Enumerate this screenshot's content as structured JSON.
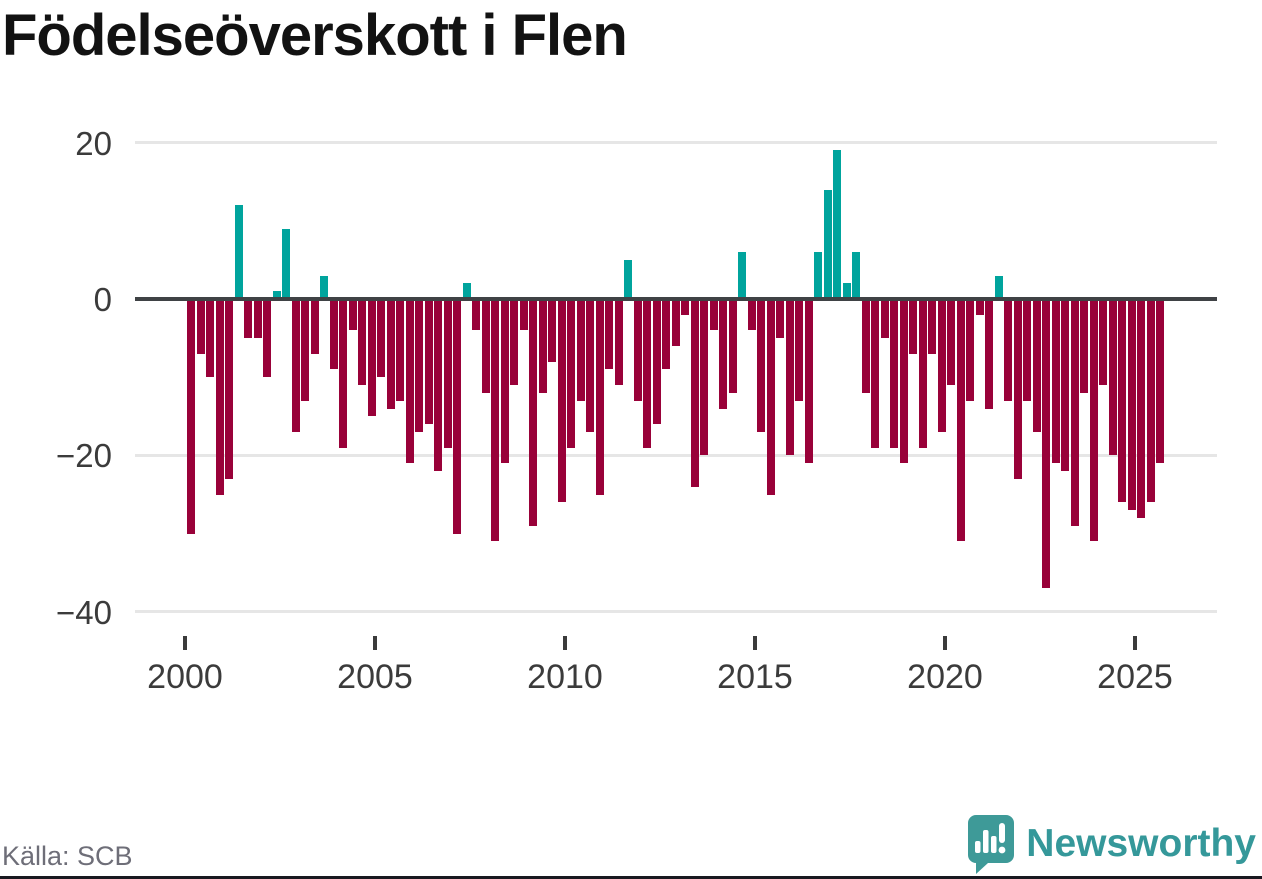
{
  "title": "Födelseöverskott i Flen",
  "source": "Källa: SCB",
  "branding": {
    "name": "Newsworthy"
  },
  "colors": {
    "positive": "#00a49d",
    "negative": "#990139",
    "zero_line": "#3f4245",
    "gridline": "#e6e6e6",
    "title_text": "#121212",
    "axis_text": "#3b3b3b",
    "source_text": "#6e6e78",
    "brand_teal": "#35989a",
    "logo_bubble": "#3e9a98",
    "bottom_rule": "#181820"
  },
  "chart_data": {
    "type": "bar",
    "title": "Födelseöverskott i Flen",
    "xlabel": "",
    "ylabel": "",
    "ylim": [
      -40,
      22
    ],
    "yticks": [
      20,
      0,
      -20,
      -40
    ],
    "xticks": [
      2000,
      2005,
      2010,
      2015,
      2020,
      2025
    ],
    "grid": "horizontal",
    "legend": "none",
    "period": "quarterly",
    "x": [
      "2000 Q1",
      "2000 Q2",
      "2000 Q3",
      "2000 Q4",
      "2001 Q1",
      "2001 Q2",
      "2001 Q3",
      "2001 Q4",
      "2002 Q1",
      "2002 Q2",
      "2002 Q3",
      "2002 Q4",
      "2003 Q1",
      "2003 Q2",
      "2003 Q3",
      "2003 Q4",
      "2004 Q1",
      "2004 Q2",
      "2004 Q3",
      "2004 Q4",
      "2005 Q1",
      "2005 Q2",
      "2005 Q3",
      "2005 Q4",
      "2006 Q1",
      "2006 Q2",
      "2006 Q3",
      "2006 Q4",
      "2007 Q1",
      "2007 Q2",
      "2007 Q3",
      "2007 Q4",
      "2008 Q1",
      "2008 Q2",
      "2008 Q3",
      "2008 Q4",
      "2009 Q1",
      "2009 Q2",
      "2009 Q3",
      "2009 Q4",
      "2010 Q1",
      "2010 Q2",
      "2010 Q3",
      "2010 Q4",
      "2011 Q1",
      "2011 Q2",
      "2011 Q3",
      "2011 Q4",
      "2012 Q1",
      "2012 Q2",
      "2012 Q3",
      "2012 Q4",
      "2013 Q1",
      "2013 Q2",
      "2013 Q3",
      "2013 Q4",
      "2014 Q1",
      "2014 Q2",
      "2014 Q3",
      "2014 Q4",
      "2015 Q1",
      "2015 Q2",
      "2015 Q3",
      "2015 Q4",
      "2016 Q1",
      "2016 Q2",
      "2016 Q3",
      "2016 Q4",
      "2017 Q1",
      "2017 Q2",
      "2017 Q3",
      "2017 Q4",
      "2018 Q1",
      "2018 Q2",
      "2018 Q3",
      "2018 Q4",
      "2019 Q1",
      "2019 Q2",
      "2019 Q3",
      "2019 Q4",
      "2020 Q1",
      "2020 Q2",
      "2020 Q3",
      "2020 Q4",
      "2021 Q1",
      "2021 Q2",
      "2021 Q3",
      "2021 Q4",
      "2022 Q1",
      "2022 Q2",
      "2022 Q3",
      "2022 Q4",
      "2023 Q1",
      "2023 Q2",
      "2023 Q3",
      "2023 Q4",
      "2024 Q1",
      "2024 Q2",
      "2024 Q3",
      "2024 Q4",
      "2025 Q1",
      "2025 Q2",
      "2025 Q3"
    ],
    "values": [
      -30,
      -7,
      -10,
      -25,
      -23,
      12,
      -5,
      -5,
      -10,
      1,
      9,
      -17,
      -13,
      -7,
      3,
      -9,
      -19,
      -4,
      -11,
      -15,
      -10,
      -14,
      -13,
      -21,
      -17,
      -16,
      -22,
      -19,
      -30,
      2,
      -4,
      -12,
      -31,
      -21,
      -11,
      -4,
      -29,
      -12,
      -8,
      -26,
      -19,
      -13,
      -17,
      -25,
      -9,
      -11,
      5,
      -13,
      -19,
      -16,
      -9,
      -6,
      -2,
      -24,
      -20,
      -4,
      -14,
      -12,
      6,
      -4,
      -17,
      -25,
      -5,
      -20,
      -13,
      -21,
      6,
      14,
      19,
      2,
      6,
      -12,
      -19,
      -5,
      -19,
      -21,
      -7,
      -19,
      -7,
      -17,
      -11,
      -31,
      -13,
      -2,
      -14,
      3,
      -13,
      -23,
      -13,
      -17,
      -37,
      -21,
      -22,
      -29,
      -12,
      -31,
      -11,
      -20,
      -26,
      -27,
      -28,
      -26,
      -21
    ],
    "series_colors": {
      "positive": "#00a49d",
      "negative": "#990139"
    }
  }
}
